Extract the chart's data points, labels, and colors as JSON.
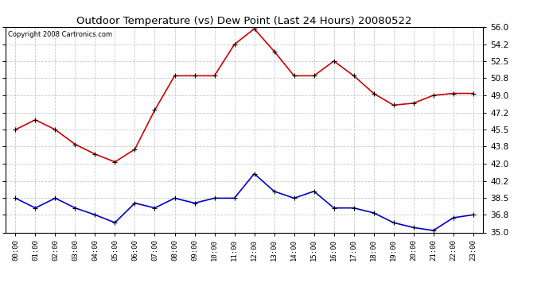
{
  "title": "Outdoor Temperature (vs) Dew Point (Last 24 Hours) 20080522",
  "copyright": "Copyright 2008 Cartronics.com",
  "hours": [
    "00:00",
    "01:00",
    "02:00",
    "03:00",
    "04:00",
    "05:00",
    "06:00",
    "07:00",
    "08:00",
    "09:00",
    "10:00",
    "11:00",
    "12:00",
    "13:00",
    "14:00",
    "15:00",
    "16:00",
    "17:00",
    "18:00",
    "19:00",
    "20:00",
    "21:00",
    "22:00",
    "23:00"
  ],
  "temp": [
    45.5,
    46.5,
    45.5,
    44.0,
    43.0,
    42.2,
    43.5,
    47.5,
    51.0,
    51.0,
    51.0,
    54.2,
    55.8,
    53.5,
    51.0,
    51.0,
    52.5,
    51.0,
    49.2,
    48.0,
    48.2,
    49.0,
    49.2,
    49.2
  ],
  "dewpoint": [
    38.5,
    37.5,
    38.5,
    37.5,
    36.8,
    36.0,
    38.0,
    37.5,
    38.5,
    38.0,
    38.5,
    38.5,
    41.0,
    39.2,
    38.5,
    39.2,
    37.5,
    37.5,
    37.0,
    36.0,
    35.5,
    35.2,
    36.5,
    36.8
  ],
  "temp_color": "#cc0000",
  "dew_color": "#0000cc",
  "bg_color": "#ffffff",
  "grid_color": "#c8c8c8",
  "ylim": [
    35.0,
    56.0
  ],
  "yticks": [
    35.0,
    36.8,
    38.5,
    40.2,
    42.0,
    43.8,
    45.5,
    47.2,
    49.0,
    50.8,
    52.5,
    54.2,
    56.0
  ],
  "marker": "+",
  "marker_size": 5,
  "linewidth": 1.2,
  "figwidth": 6.9,
  "figheight": 3.75,
  "dpi": 100
}
